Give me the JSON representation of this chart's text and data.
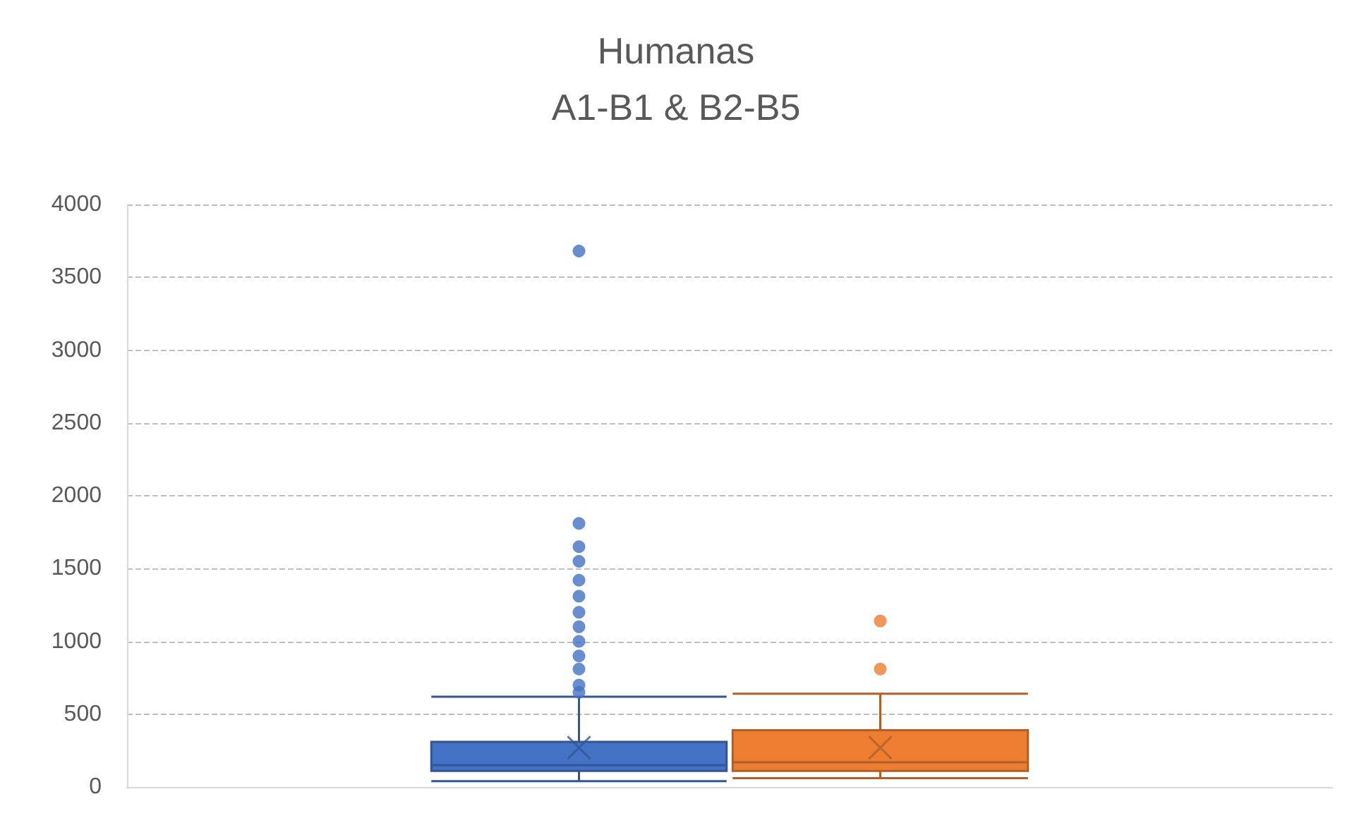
{
  "chart_data": {
    "type": "box",
    "title": "Humanas",
    "subtitle": "A1-B1 & B2-B5",
    "categories": [
      null
    ],
    "series": [
      {
        "color": "#4472c4",
        "boxes": [
          {
            "low": 40,
            "q1": 110,
            "median": 150,
            "q3": 310,
            "high": 620,
            "mean": 270,
            "outliers": [
              3680,
              1810,
              1650,
              1550,
              1420,
              1310,
              1200,
              1100,
              1000,
              900,
              810,
              700,
              650
            ]
          }
        ]
      },
      {
        "color": "#ed7d31",
        "boxes": [
          {
            "low": 60,
            "q1": 110,
            "median": 170,
            "q3": 390,
            "high": 640,
            "mean": 270,
            "outliers": [
              1140,
              810
            ]
          }
        ]
      }
    ],
    "ylim": [
      0,
      4000
    ],
    "yticks": [
      0,
      500,
      1000,
      1500,
      2000,
      2500,
      3000,
      3500,
      4000
    ],
    "grid": "y"
  }
}
